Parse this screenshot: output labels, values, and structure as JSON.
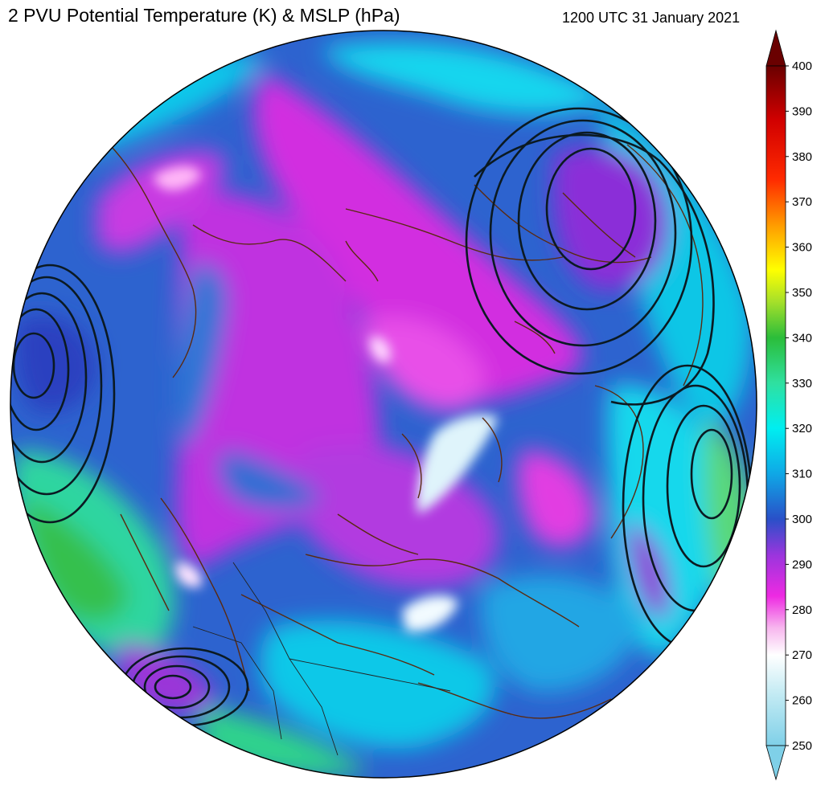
{
  "header": {
    "title": "2 PVU Potential Temperature (K) & MSLP (hPa)",
    "valid_time": "1200 UTC 31 January 2021"
  },
  "colorbar": {
    "min": 250,
    "max": 400,
    "ticks": [
      "400",
      "390",
      "380",
      "370",
      "360",
      "350",
      "340",
      "330",
      "320",
      "310",
      "300",
      "290",
      "280",
      "270",
      "260",
      "250"
    ],
    "stops": [
      {
        "value": 250,
        "color": "#7fd0e8"
      },
      {
        "value": 262,
        "color": "#c7ecf4"
      },
      {
        "value": 270,
        "color": "#ffffff"
      },
      {
        "value": 276,
        "color": "#f7b6ee"
      },
      {
        "value": 283,
        "color": "#ee2ae2"
      },
      {
        "value": 292,
        "color": "#9b35dd"
      },
      {
        "value": 300,
        "color": "#2950c8"
      },
      {
        "value": 310,
        "color": "#0fa8e6"
      },
      {
        "value": 320,
        "color": "#00eef0"
      },
      {
        "value": 330,
        "color": "#2fe0a0"
      },
      {
        "value": 340,
        "color": "#2bbd3a"
      },
      {
        "value": 348,
        "color": "#a6e02a"
      },
      {
        "value": 355,
        "color": "#ffff00"
      },
      {
        "value": 365,
        "color": "#ff9a00"
      },
      {
        "value": 375,
        "color": "#ff2a00"
      },
      {
        "value": 388,
        "color": "#d10000"
      },
      {
        "value": 400,
        "color": "#6a0000"
      }
    ]
  },
  "map": {
    "projection": "north-polar-stereographic",
    "colors": {
      "coastline": "#5a2a10",
      "isobar": "#0b1a22",
      "border": "#222222"
    }
  }
}
